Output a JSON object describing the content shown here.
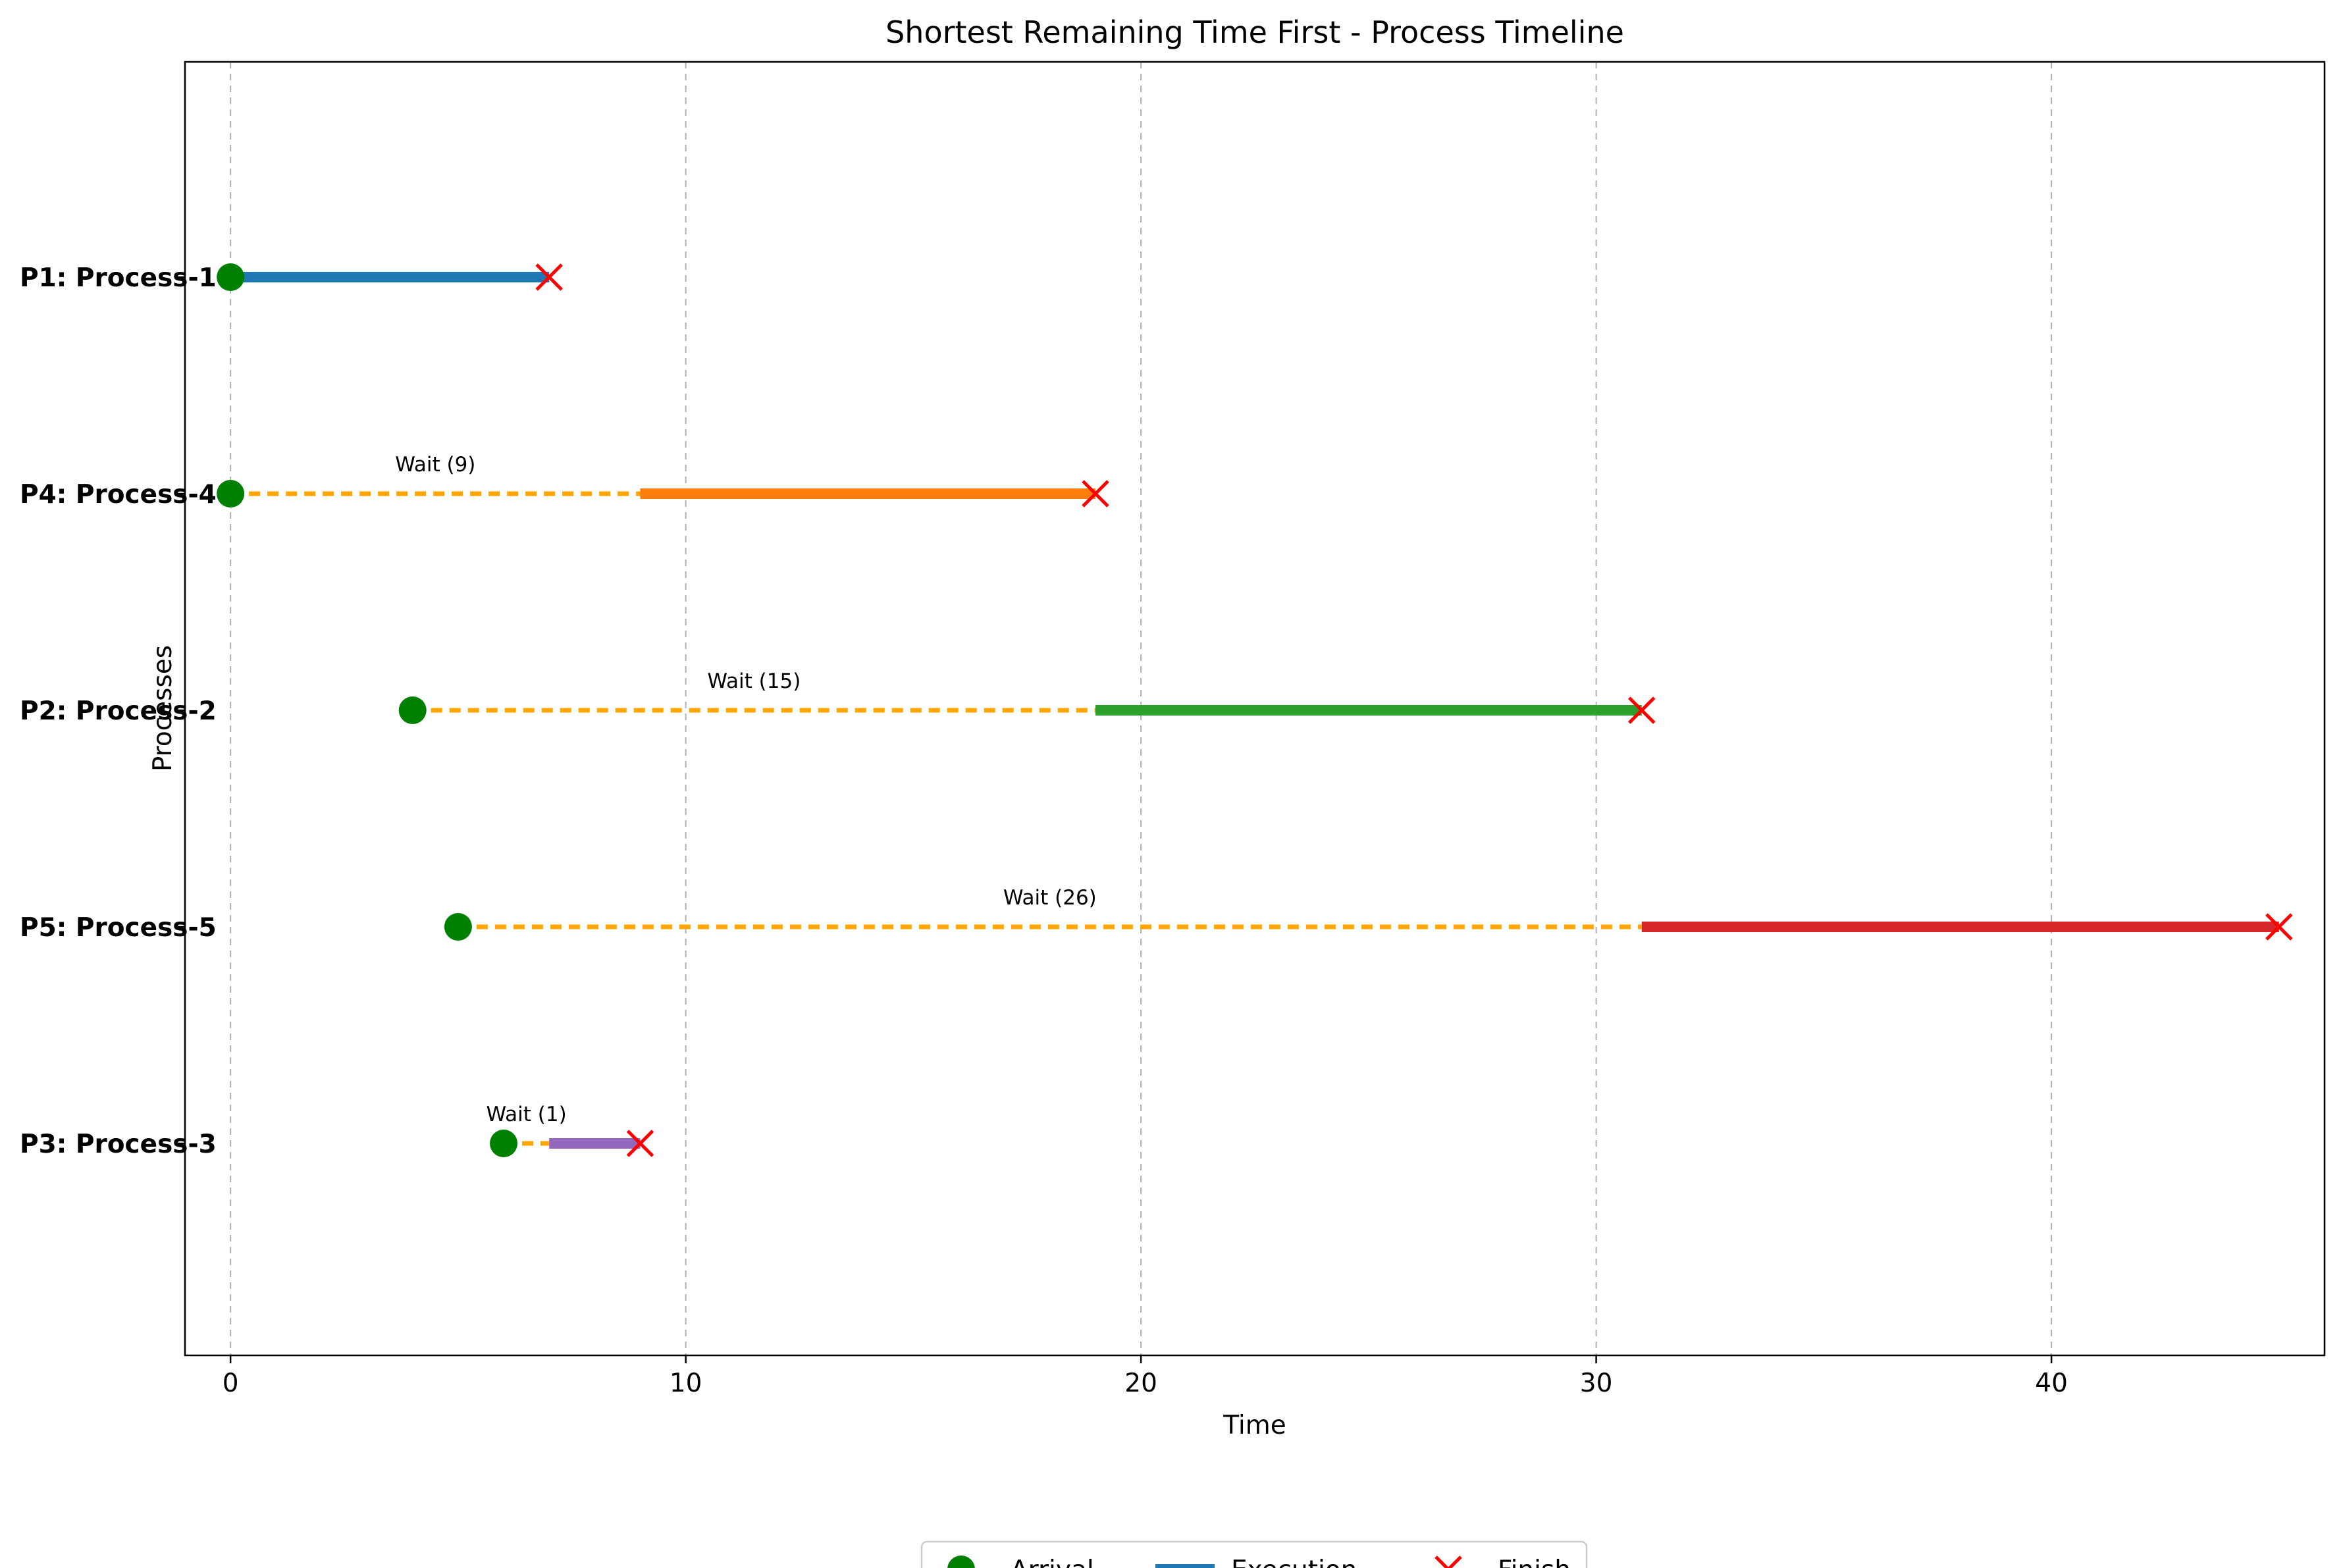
{
  "chart_data": {
    "type": "timeline",
    "title": "Shortest Remaining Time First - Process Timeline",
    "xlabel": "Time",
    "ylabel": "Processes",
    "xlim": [
      -1,
      46
    ],
    "xticks": [
      0,
      10,
      20,
      30,
      40
    ],
    "grid": "x-dashed",
    "legend_position": "bottom-center",
    "legend": [
      {
        "key": "arrival",
        "label": "Arrival",
        "color": "#008000",
        "marker": "circle"
      },
      {
        "key": "execution",
        "label": "Execution",
        "color": "#1f77b4",
        "marker": "line"
      },
      {
        "key": "finish",
        "label": "Finish",
        "color": "#ff0000",
        "marker": "x"
      }
    ],
    "wait_color": "#ffa500",
    "processes": [
      {
        "label": "P1: Process-1",
        "arrival": 0,
        "start": 0,
        "finish": 7,
        "wait": 0,
        "wait_label": "",
        "color": "#1f77b4"
      },
      {
        "label": "P4: Process-4",
        "arrival": 0,
        "start": 9,
        "finish": 19,
        "wait": 9,
        "wait_label": "Wait (9)",
        "color": "#ff7f0e"
      },
      {
        "label": "P2: Process-2",
        "arrival": 4,
        "start": 19,
        "finish": 31,
        "wait": 15,
        "wait_label": "Wait (15)",
        "color": "#2ca02c"
      },
      {
        "label": "P5: Process-5",
        "arrival": 5,
        "start": 31,
        "finish": 45,
        "wait": 26,
        "wait_label": "Wait (26)",
        "color": "#d62728"
      },
      {
        "label": "P3: Process-3",
        "arrival": 6,
        "start": 7,
        "finish": 9,
        "wait": 1,
        "wait_label": "Wait (1)",
        "color": "#9467bd"
      }
    ]
  }
}
